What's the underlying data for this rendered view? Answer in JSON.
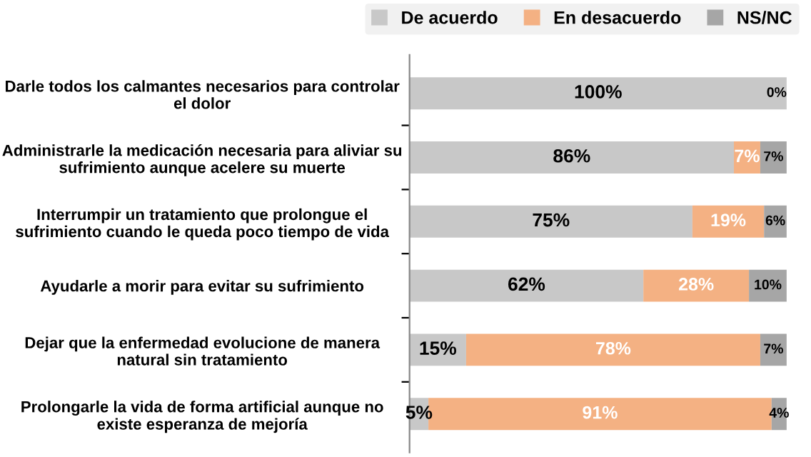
{
  "chart_data": {
    "type": "bar",
    "orientation": "horizontal",
    "stacked": true,
    "legend": "top",
    "tick_labels": "y",
    "xlim": [
      0,
      100
    ],
    "categories": [
      "Darle todos los calmantes necesarios para controlar el dolor",
      "Administrarle la medicación necesaria para aliviar su sufrimiento aunque acelere su muerte",
      "Interrumpir un tratamiento que prolongue el sufrimiento cuando le queda poco tiempo de vida",
      "Ayudarle a morir para evitar su sufrimiento",
      "Dejar que la enfermedad evolucione de manera natural sin tratamiento",
      "Prolongarle la vida de forma artificial aunque no existe esperanza de mejoría"
    ],
    "series": [
      {
        "name": "De acuerdo",
        "color": "#c8c8c8",
        "values": [
          100,
          86,
          75,
          62,
          15,
          5
        ],
        "value_labels": [
          "100%",
          "86%",
          "75%",
          "62%",
          "15%",
          "5%"
        ]
      },
      {
        "name": "En desacuerdo",
        "color": "#f4b183",
        "values": [
          0,
          7,
          19,
          28,
          78,
          91
        ],
        "value_labels": [
          null,
          "7%",
          "19%",
          "28%",
          "78%",
          "91%"
        ]
      },
      {
        "name": "NS/NC",
        "color": "#a6a6a6",
        "values": [
          0,
          7,
          6,
          10,
          7,
          4
        ],
        "value_labels": [
          "0%",
          "7%",
          "6%",
          "10%",
          "7%",
          "4%"
        ]
      }
    ]
  }
}
